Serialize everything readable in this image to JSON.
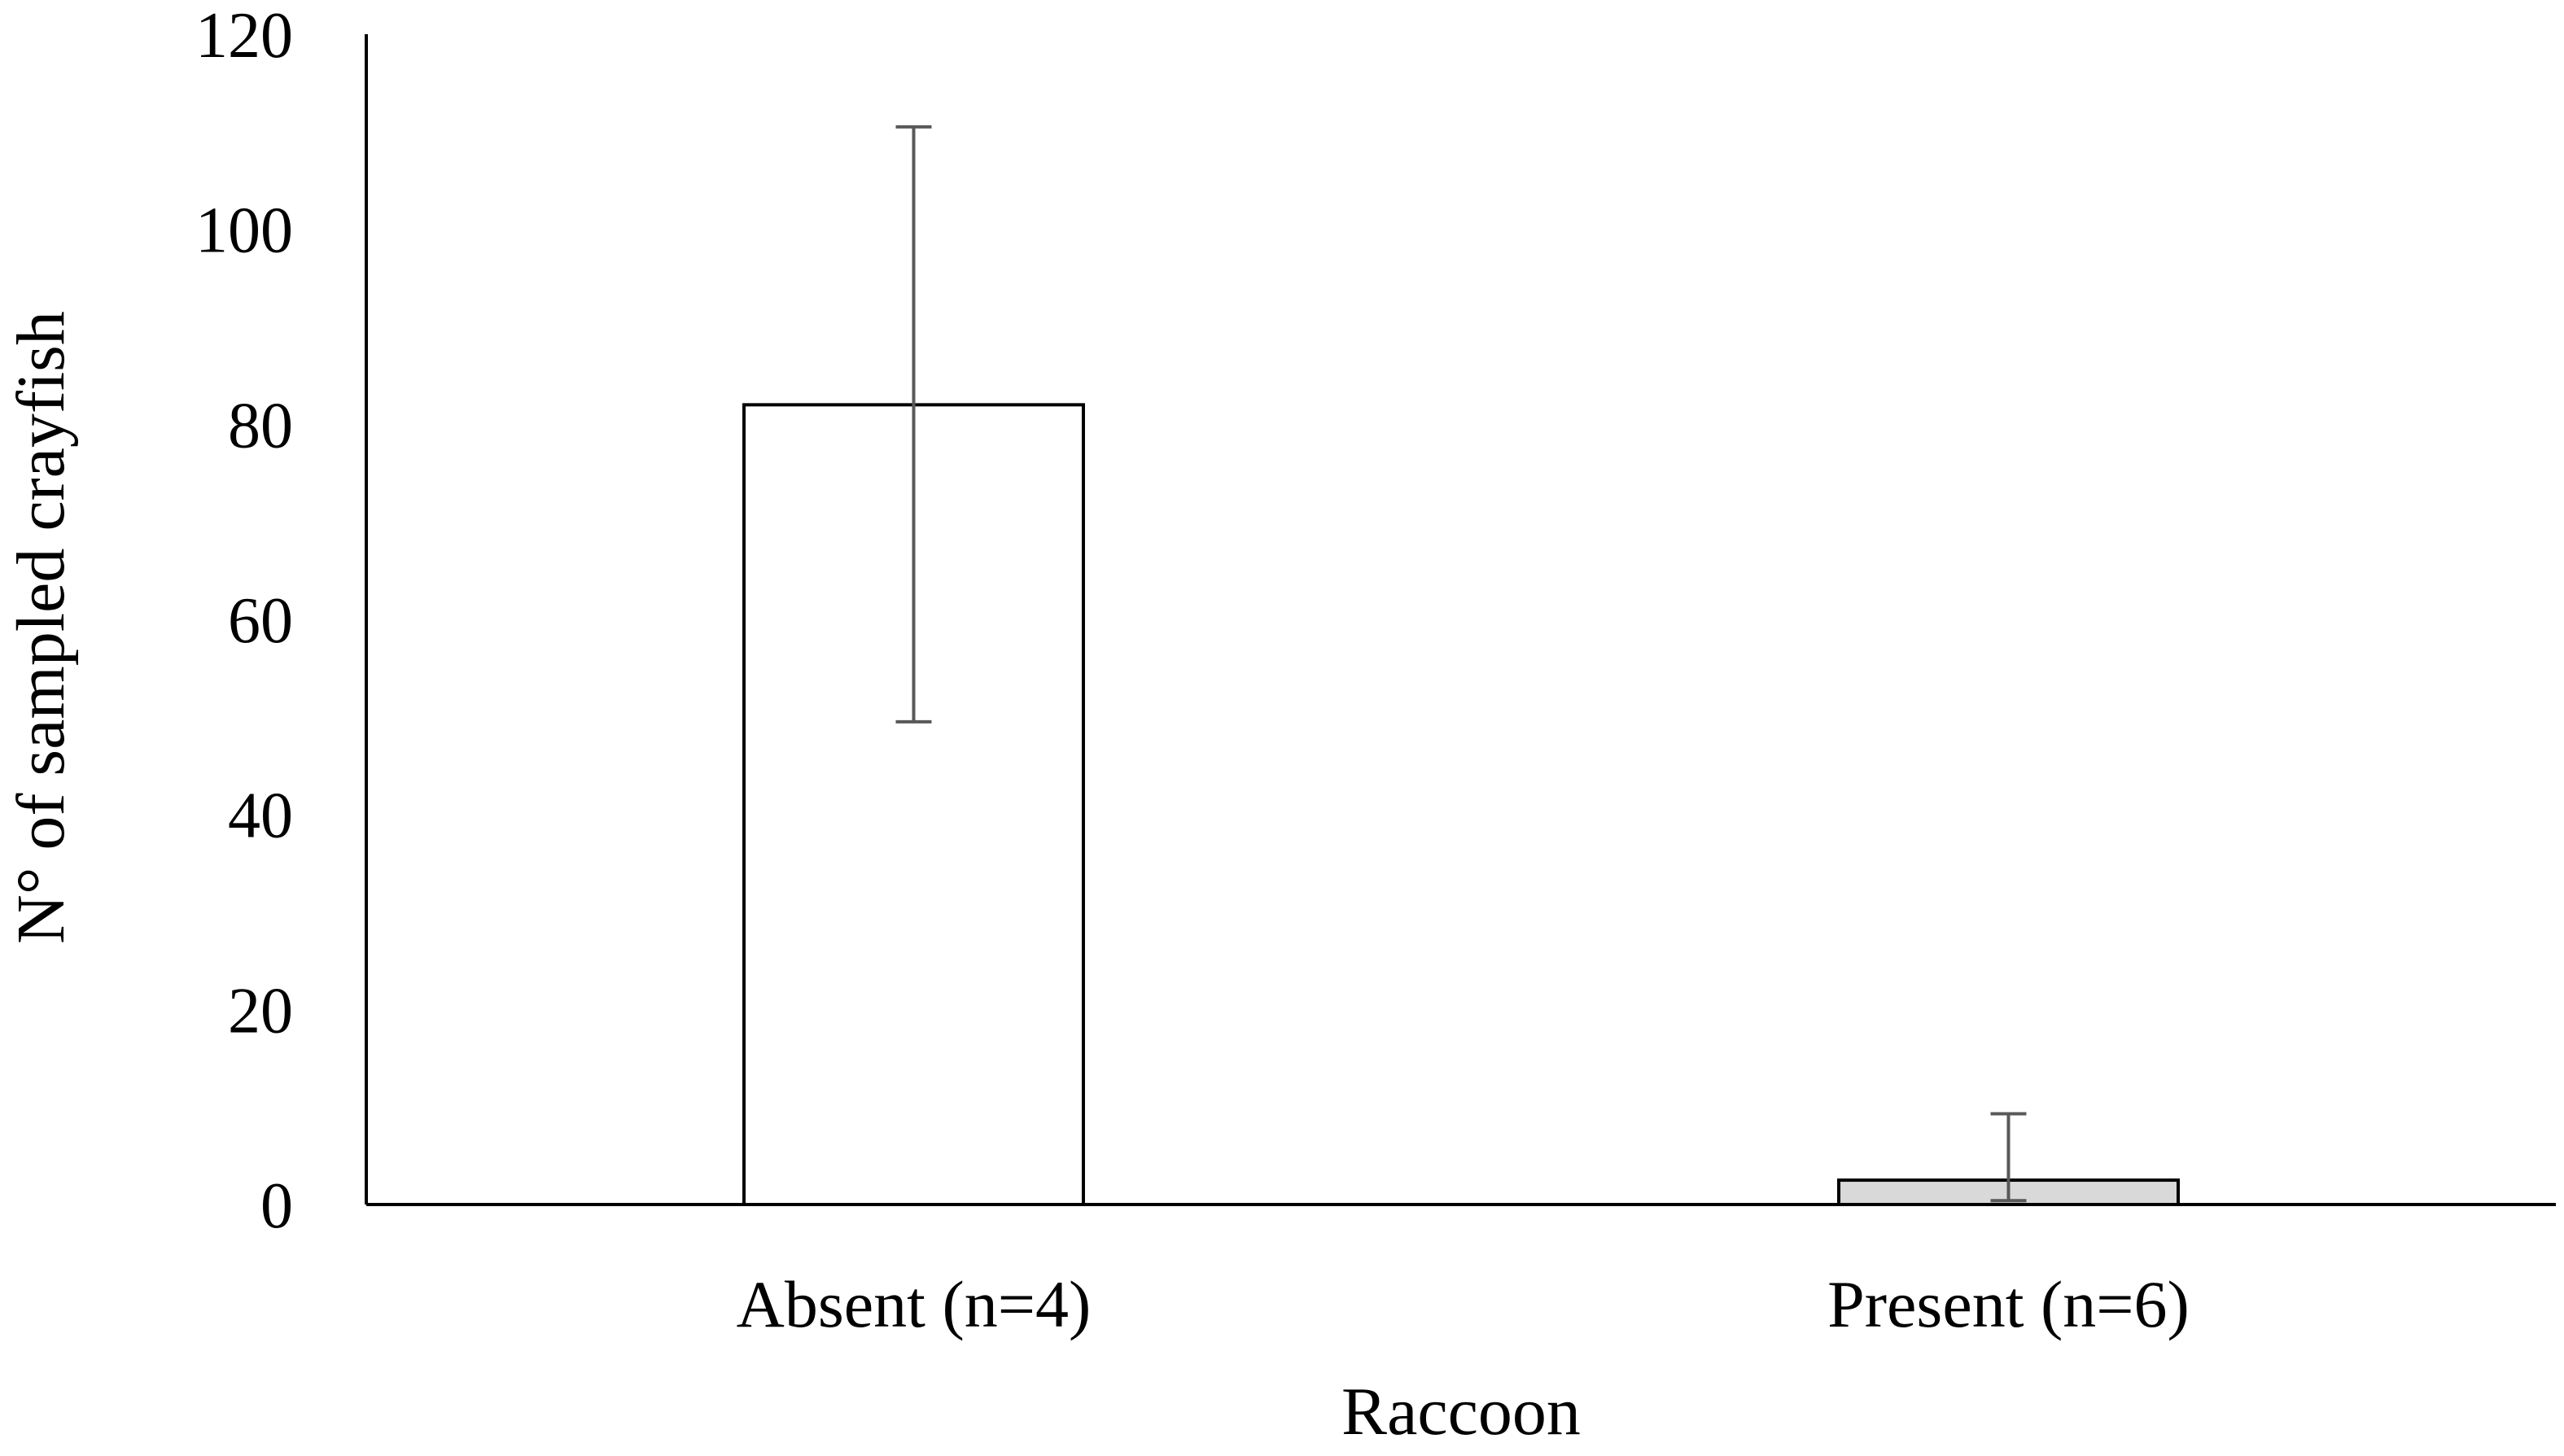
{
  "chart_data": {
    "type": "bar",
    "categories": [
      "Absent (n=4)",
      "Present (n=6)"
    ],
    "values": [
      82,
      2.5
    ],
    "error_upper": [
      110.5,
      9.3
    ],
    "error_lower": [
      49.5,
      0.4
    ],
    "bar_colors": [
      "#ffffff",
      "#d9d9d9"
    ],
    "bar_edge_color": "#000000",
    "error_bar_color": "#595959",
    "title": "",
    "xlabel": "Raccoon",
    "ylabel": "N° of sampled crayfish",
    "ylim": [
      0,
      120
    ],
    "yticks": [
      "0",
      "20",
      "40",
      "60",
      "80",
      "100",
      "120"
    ],
    "grid": false,
    "legend": "none"
  }
}
